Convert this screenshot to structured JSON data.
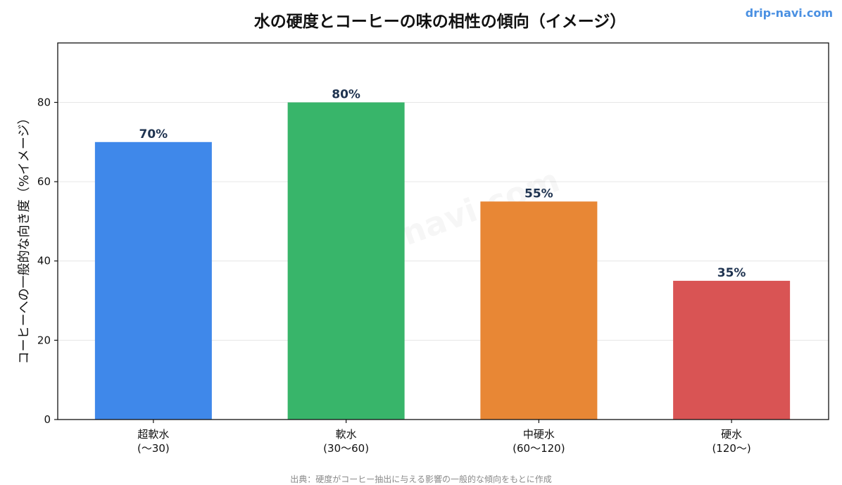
{
  "brand": {
    "text": "drip-navi.com",
    "color": "#4a90e2"
  },
  "watermark": "drip-navi.com",
  "source": "出典：硬度がコーヒー抽出に与える影響の一般的な傾向をもとに作成",
  "chart_data": {
    "type": "bar",
    "title": "水の硬度とコーヒーの味の相性の傾向（イメージ）",
    "xlabel": "",
    "ylabel": "コーヒーへの一般的な向き度（%イメージ）",
    "ylim": [
      0,
      95
    ],
    "yticks": [
      0,
      20,
      40,
      60,
      80
    ],
    "grid": true,
    "legend": "none",
    "categories": [
      {
        "name": "超軟水",
        "range": "(〜30)"
      },
      {
        "name": "軟水",
        "range": "(30〜60)"
      },
      {
        "name": "中硬水",
        "range": "(60〜120)"
      },
      {
        "name": "硬水",
        "range": "(120〜)"
      }
    ],
    "values": [
      70,
      80,
      55,
      35
    ],
    "value_labels": [
      "70%",
      "80%",
      "55%",
      "35%"
    ],
    "colors": [
      "#3f88ea",
      "#38b56a",
      "#e88735",
      "#d95454"
    ]
  }
}
